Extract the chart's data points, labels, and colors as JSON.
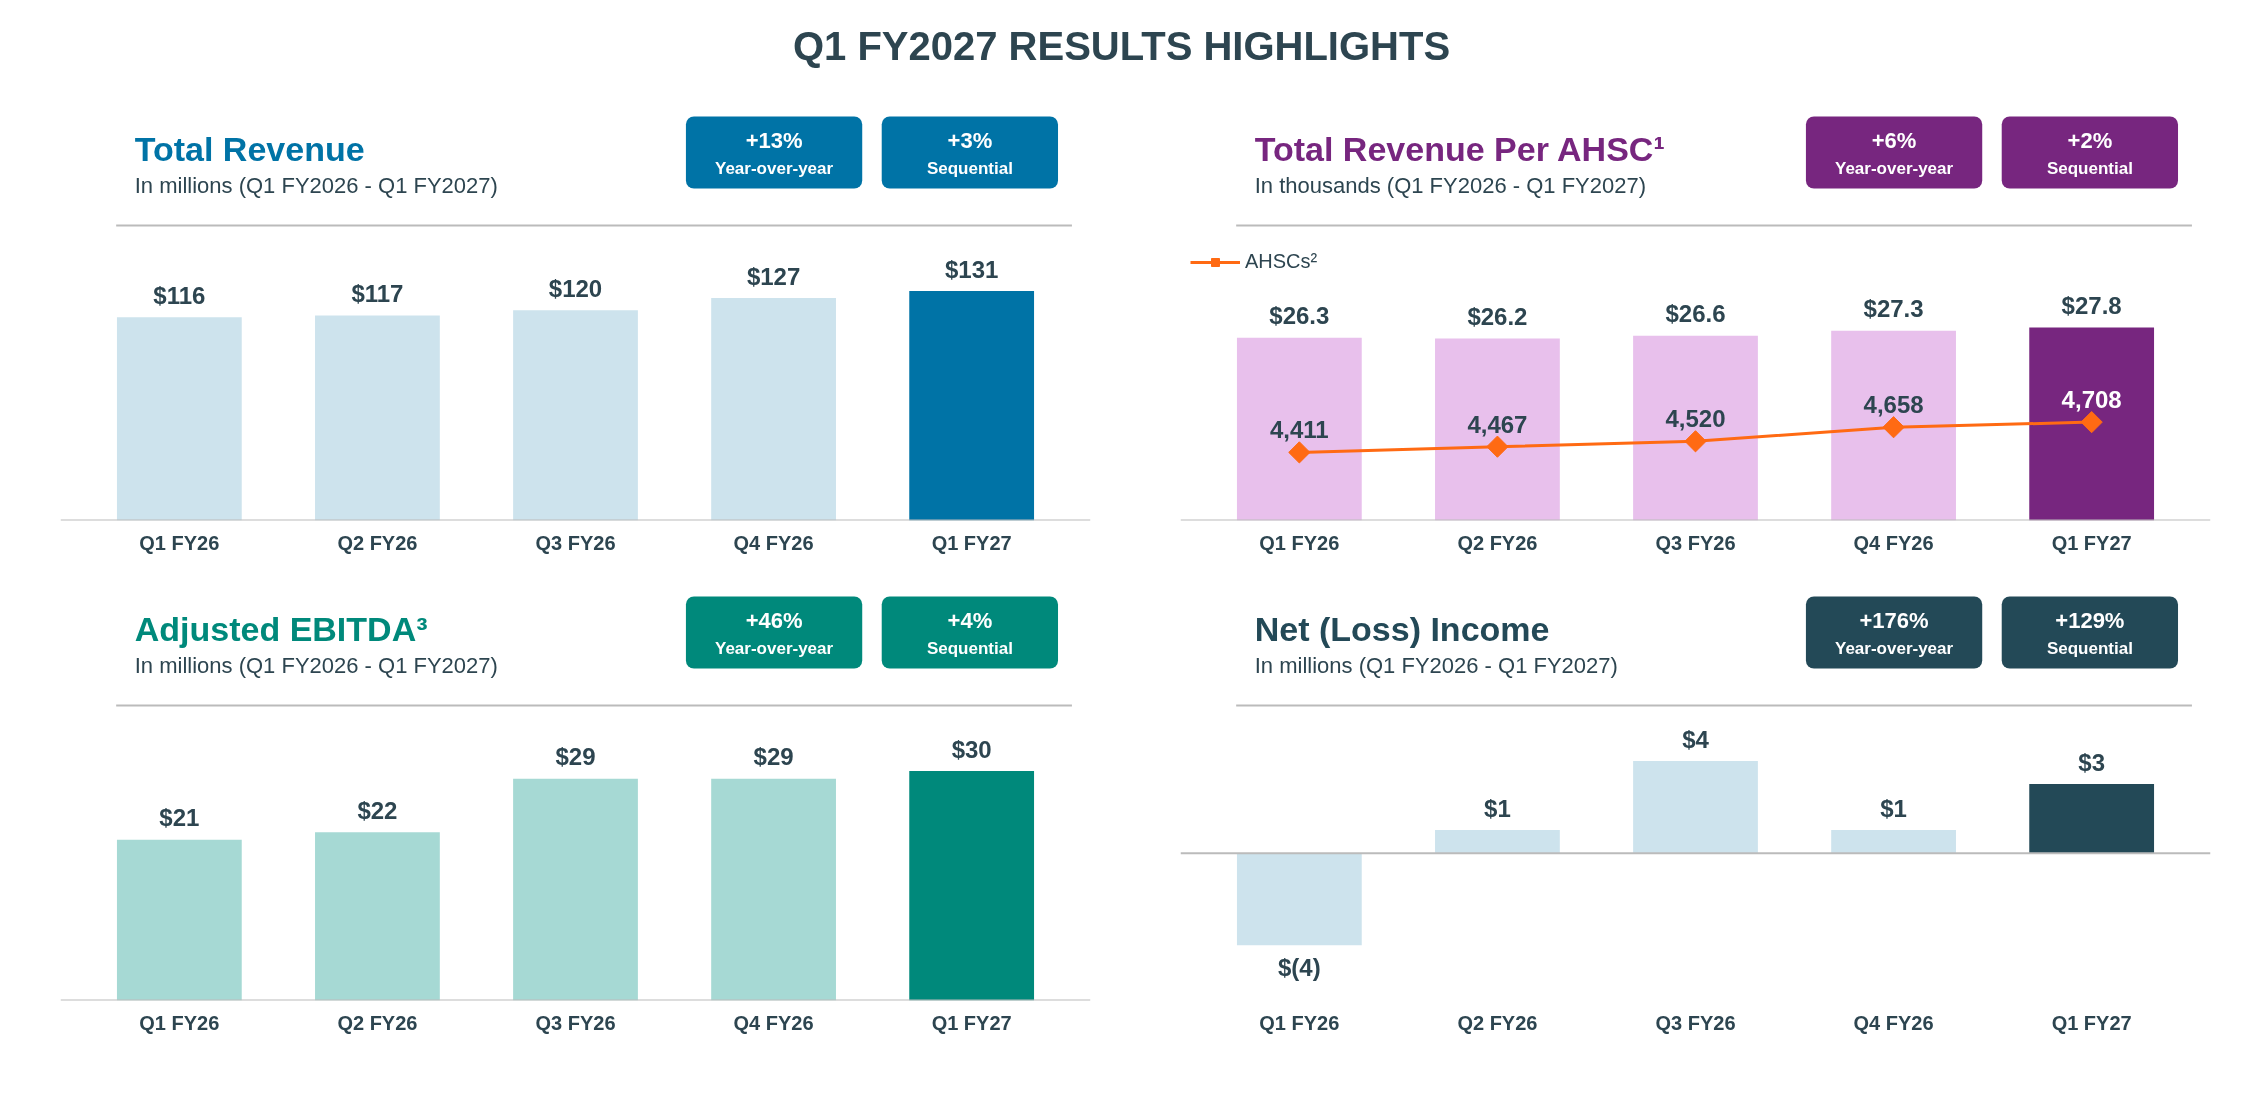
{
  "chart_data": [
    {
      "type": "other",
      "title": "Q1 FY2027 RESULTS HIGHLIGHTS"
    },
    {
      "type": "bar",
      "title": "Total Revenue",
      "subtitle": "In millions (Q1 FY2026 - Q1 FY2027)",
      "annotations": [
        "+13%",
        "Year-over-year",
        "+3%",
        "Sequential"
      ],
      "categories": [
        "Q1 FY26",
        "Q2 FY26",
        "Q3 FY26",
        "Q4 FY26",
        "Q1 FY27"
      ],
      "values": [
        116,
        117,
        120,
        127,
        131
      ],
      "colors": [
        "#cde3ed",
        "#cde3ed",
        "#cde3ed",
        "#cde3ed",
        "#0073a6"
      ],
      "value_labels": [
        "$116",
        "$117",
        "$120",
        "$127",
        "$131"
      ]
    },
    {
      "type": "bar",
      "title": "Total Revenue Per AHSC¹",
      "subtitle": "In thousands (Q1 FY2026 - Q1 FY2027)",
      "annotations": [
        "+6%",
        "Year-over-year",
        "+2%",
        "Sequential"
      ],
      "categories": [
        "Q1 FY26",
        "Q2 FY26",
        "Q3 FY26",
        "Q4 FY26",
        "Q1 FY27"
      ],
      "legend": "top left",
      "marker": "diamond",
      "series": [
        {
          "type": "bar",
          "colors": [
            "#e8c0ec",
            "#e8c0ec",
            "#e8c0ec",
            "#e8c0ec",
            "#77267f"
          ],
          "values": [
            26.3,
            26.2,
            26.6,
            27.3,
            27.8
          ],
          "value_labels": [
            "$26.3",
            "$26.2",
            "$26.6",
            "$27.3",
            "$27.8"
          ]
        },
        {
          "type": "line",
          "name": "AHSCs²",
          "axis": "y2",
          "color": "#ff6a13",
          "values": [
            4411,
            4467,
            4520,
            4658,
            4708
          ],
          "value_labels": [
            "4,411",
            "4,467",
            "4,520",
            "4,658",
            "4,708"
          ]
        }
      ]
    },
    {
      "type": "bar",
      "title": "Adjusted EBITDA³",
      "subtitle": "In millions (Q1 FY2026 - Q1 FY2027)",
      "annotations": [
        "+46%",
        "Year-over-year",
        "+4%",
        "Sequential"
      ],
      "categories": [
        "Q1 FY26",
        "Q2 FY26",
        "Q3 FY26",
        "Q4 FY26",
        "Q1 FY27"
      ],
      "values": [
        21,
        22,
        29,
        29,
        30
      ],
      "colors": [
        "#a6d9d4",
        "#a6d9d4",
        "#a6d9d4",
        "#a6d9d4",
        "#00897b"
      ],
      "value_labels": [
        "$21",
        "$22",
        "$29",
        "$29",
        "$30"
      ]
    },
    {
      "type": "bar",
      "title": "Net (Loss) Income",
      "subtitle": "In millions (Q1 FY2026 - Q1 FY2027)",
      "annotations": [
        "+176%",
        "Year-over-year",
        "+129%",
        "Sequential"
      ],
      "categories": [
        "Q1 FY26",
        "Q2 FY26",
        "Q3 FY26",
        "Q4 FY26",
        "Q1 FY27"
      ],
      "values": [
        -4,
        1,
        4,
        1,
        3
      ],
      "colors": [
        "#cde3ed",
        "#cde3ed",
        "#cde3ed",
        "#cde3ed",
        "#234957"
      ],
      "value_labels": [
        "$(4)",
        "$1",
        "$4",
        "$1",
        "$3"
      ]
    }
  ]
}
